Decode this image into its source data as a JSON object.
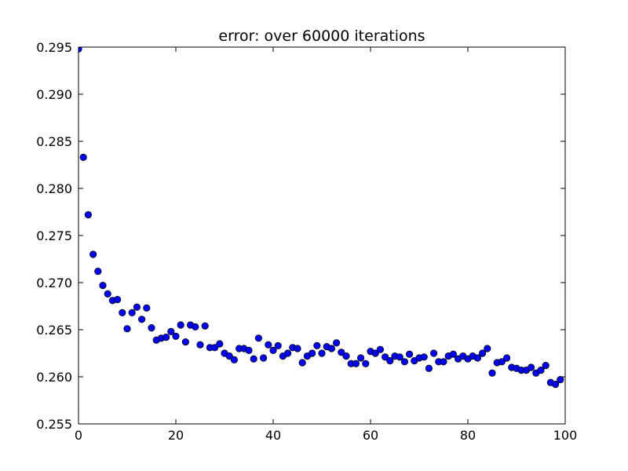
{
  "chart_data": {
    "type": "scatter",
    "title": "error: over 60000 iterations",
    "xlabel": "",
    "ylabel": "",
    "xlim": [
      0,
      100
    ],
    "ylim": [
      0.255,
      0.295
    ],
    "x_ticks": [
      0,
      20,
      40,
      60,
      80,
      100
    ],
    "x_tick_labels": [
      "0",
      "20",
      "40",
      "60",
      "80",
      "100"
    ],
    "y_ticks": [
      0.255,
      0.26,
      0.265,
      0.27,
      0.275,
      0.28,
      0.285,
      0.29,
      0.295
    ],
    "y_tick_labels": [
      "0.255",
      "0.260",
      "0.265",
      "0.270",
      "0.275",
      "0.280",
      "0.285",
      "0.290",
      "0.295"
    ],
    "grid": false,
    "legend": "none",
    "marker_color": "#0000ff",
    "marker_edge_color": "#000000",
    "x": [
      0,
      1,
      2,
      3,
      4,
      5,
      6,
      7,
      8,
      9,
      10,
      11,
      12,
      13,
      14,
      15,
      16,
      17,
      18,
      19,
      20,
      21,
      22,
      23,
      24,
      25,
      26,
      27,
      28,
      29,
      30,
      31,
      32,
      33,
      34,
      35,
      36,
      37,
      38,
      39,
      40,
      41,
      42,
      43,
      44,
      45,
      46,
      47,
      48,
      49,
      50,
      51,
      52,
      53,
      54,
      55,
      56,
      57,
      58,
      59,
      60,
      61,
      62,
      63,
      64,
      65,
      66,
      67,
      68,
      69,
      70,
      71,
      72,
      73,
      74,
      75,
      76,
      77,
      78,
      79,
      80,
      81,
      82,
      83,
      84,
      85,
      86,
      87,
      88,
      89,
      90,
      91,
      92,
      93,
      94,
      95,
      96,
      97,
      98,
      99
    ],
    "y": [
      0.2948,
      0.2833,
      0.2772,
      0.273,
      0.2712,
      0.2697,
      0.2688,
      0.2681,
      0.2682,
      0.2668,
      0.2651,
      0.2668,
      0.2674,
      0.2661,
      0.2673,
      0.2652,
      0.2639,
      0.2641,
      0.2642,
      0.2648,
      0.2643,
      0.2655,
      0.2637,
      0.2655,
      0.2653,
      0.2634,
      0.2654,
      0.2631,
      0.2631,
      0.2635,
      0.2625,
      0.2622,
      0.2618,
      0.263,
      0.263,
      0.2628,
      0.2619,
      0.2641,
      0.262,
      0.2634,
      0.2628,
      0.2633,
      0.2622,
      0.2625,
      0.2631,
      0.263,
      0.2615,
      0.2622,
      0.2625,
      0.2633,
      0.2625,
      0.2632,
      0.263,
      0.2636,
      0.2626,
      0.2622,
      0.2614,
      0.2614,
      0.262,
      0.2614,
      0.2627,
      0.2625,
      0.2629,
      0.2621,
      0.2617,
      0.2622,
      0.2621,
      0.2616,
      0.2624,
      0.2617,
      0.262,
      0.2621,
      0.2609,
      0.2625,
      0.2616,
      0.2616,
      0.2622,
      0.2624,
      0.2619,
      0.2622,
      0.2619,
      0.2622,
      0.262,
      0.2625,
      0.263,
      0.2604,
      0.2615,
      0.2616,
      0.262,
      0.261,
      0.2609,
      0.2607,
      0.2607,
      0.261,
      0.2604,
      0.2607,
      0.2612,
      0.2594,
      0.2592,
      0.2597
    ]
  }
}
